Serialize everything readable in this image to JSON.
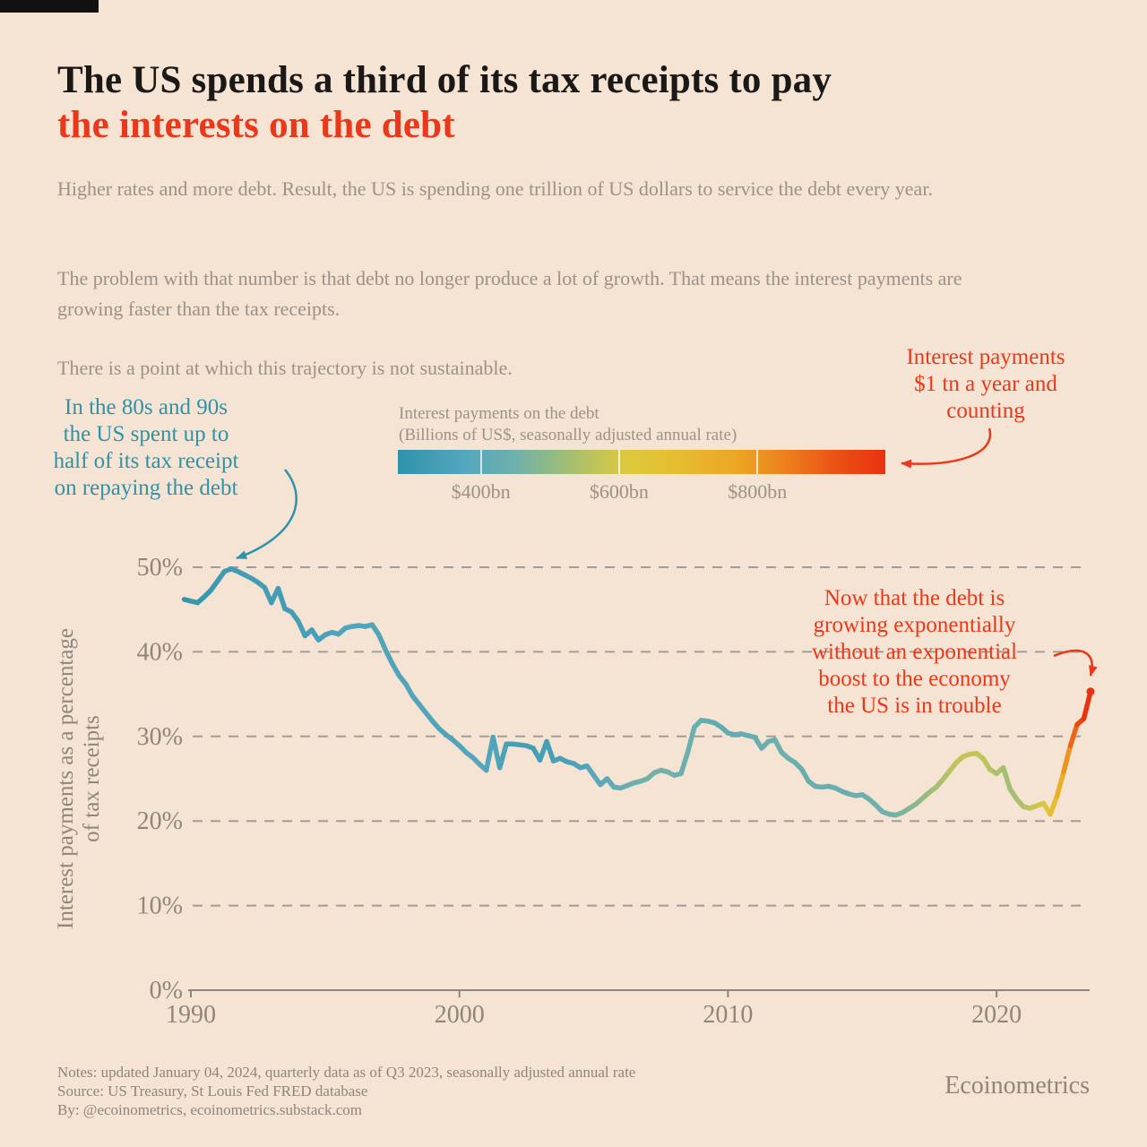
{
  "colors": {
    "background": "#F5E3D3",
    "black_bar": "#111111",
    "ink": "#1B1918",
    "red": "#E9391A",
    "teal": "#2F93A8",
    "body_gray": "#9B9289",
    "axis_gray": "#8E867D",
    "gridline_gray": "#8C8C8C"
  },
  "header": {
    "title_line1": "The US spends a third of its tax receipts to pay",
    "title_line2": "the interests on the debt",
    "paragraphs": [
      "Higher rates and more debt. Result, the US is spending one trillion of US dollars to service the debt every year.",
      "The problem with that number is that debt no longer produce a lot of growth. That means the interest payments are growing faster than the tax receipts.",
      "There is a point at which this trajectory is not sustainable."
    ]
  },
  "annotations": {
    "teal": {
      "lines": [
        "In the 80s and 90s",
        "the US spent up to",
        "half of its tax receipt",
        "on repaying the debt"
      ]
    },
    "red_top": {
      "lines": [
        "Interest payments",
        "$1 tn a year and",
        "counting"
      ]
    },
    "red_right": {
      "lines": [
        "Now that the debt is",
        "growing exponentially",
        "without an exponential",
        "boost to the economy",
        "the US is in trouble"
      ]
    }
  },
  "colorbar": {
    "label_line1": "Interest payments on the debt",
    "label_line2": "(Billions of US$, seasonally adjusted annual rate)",
    "ticks": [
      "$400bn",
      "$600bn",
      "$800bn"
    ],
    "tick_values": [
      400,
      600,
      800
    ],
    "domain": [
      280,
      985
    ],
    "stops": [
      [
        0,
        "#2F93AC"
      ],
      [
        0.14,
        "#54A7BC"
      ],
      [
        0.24,
        "#6FB0AC"
      ],
      [
        0.32,
        "#93BB82"
      ],
      [
        0.4,
        "#BCC45C"
      ],
      [
        0.47,
        "#DCC83D"
      ],
      [
        0.58,
        "#E7BC2E"
      ],
      [
        0.7,
        "#ECA522"
      ],
      [
        0.8,
        "#ED7E1D"
      ],
      [
        0.9,
        "#EB5114"
      ],
      [
        1,
        "#E93110"
      ]
    ]
  },
  "chart_data": {
    "type": "line",
    "title": "",
    "xlabel": "",
    "ylabel_line1": "Interest payments as a percentage",
    "ylabel_line2": "of tax receipts",
    "x_unit": "year (quarterly data)",
    "y_unit": "percent of tax receipts",
    "color_encoding": "interest payments in billions of US$ mapped on colorbar scale",
    "xlim": [
      1989.7,
      2023.6
    ],
    "ylim": [
      0,
      55
    ],
    "yticks": [
      0,
      10,
      20,
      30,
      40,
      50
    ],
    "ytick_labels": [
      "0%",
      "10%",
      "20%",
      "30%",
      "40%",
      "50%"
    ],
    "xticks": [
      1990,
      2000,
      2010,
      2020
    ],
    "xtick_labels": [
      "1990",
      "2000",
      "2010",
      "2020"
    ],
    "grid": "dashed horizontal",
    "points": [
      [
        1989.75,
        46.2,
        292
      ],
      [
        1990,
        46.0,
        296
      ],
      [
        1990.25,
        45.8,
        299
      ],
      [
        1990.5,
        46.5,
        303
      ],
      [
        1990.75,
        47.3,
        308
      ],
      [
        1991,
        48.4,
        315
      ],
      [
        1991.25,
        49.5,
        322
      ],
      [
        1991.5,
        49.8,
        327
      ],
      [
        1991.75,
        49.5,
        330
      ],
      [
        1992,
        49.1,
        332
      ],
      [
        1992.25,
        48.7,
        333
      ],
      [
        1992.5,
        48.2,
        334
      ],
      [
        1992.75,
        47.6,
        334
      ],
      [
        1993,
        45.8,
        333
      ],
      [
        1993.25,
        47.5,
        334
      ],
      [
        1993.5,
        45.1,
        334
      ],
      [
        1993.75,
        44.7,
        335
      ],
      [
        1994,
        43.6,
        337
      ],
      [
        1994.25,
        41.9,
        339
      ],
      [
        1994.5,
        42.6,
        343
      ],
      [
        1994.75,
        41.4,
        347
      ],
      [
        1995,
        42.0,
        352
      ],
      [
        1995.25,
        42.3,
        357
      ],
      [
        1995.5,
        42.1,
        360
      ],
      [
        1995.75,
        42.8,
        363
      ],
      [
        1996,
        43.0,
        364
      ],
      [
        1996.25,
        43.1,
        365
      ],
      [
        1996.5,
        43.0,
        366
      ],
      [
        1996.75,
        43.2,
        367
      ],
      [
        1997,
        42.0,
        368
      ],
      [
        1997.25,
        40.2,
        369
      ],
      [
        1997.5,
        38.6,
        370
      ],
      [
        1997.75,
        37.2,
        371
      ],
      [
        1998,
        36.2,
        371
      ],
      [
        1998.25,
        34.8,
        370
      ],
      [
        1998.5,
        33.8,
        369
      ],
      [
        1998.75,
        32.8,
        367
      ],
      [
        1999,
        31.8,
        365
      ],
      [
        1999.25,
        30.9,
        363
      ],
      [
        1999.5,
        30.2,
        362
      ],
      [
        1999.75,
        29.6,
        364
      ],
      [
        2000,
        28.9,
        368
      ],
      [
        2000.25,
        28.1,
        372
      ],
      [
        2000.5,
        27.5,
        375
      ],
      [
        2000.75,
        26.7,
        376
      ],
      [
        2001,
        26.0,
        374
      ],
      [
        2001.25,
        29.9,
        369
      ],
      [
        2001.5,
        26.3,
        361
      ],
      [
        2001.75,
        29.1,
        352
      ],
      [
        2002,
        29.1,
        345
      ],
      [
        2002.25,
        29.0,
        340
      ],
      [
        2002.5,
        28.9,
        338
      ],
      [
        2002.75,
        28.6,
        336
      ],
      [
        2003,
        27.2,
        336
      ],
      [
        2003.25,
        29.4,
        338
      ],
      [
        2003.5,
        27.1,
        341
      ],
      [
        2003.75,
        27.4,
        345
      ],
      [
        2004,
        27.0,
        350
      ],
      [
        2004.25,
        26.8,
        356
      ],
      [
        2004.5,
        26.3,
        362
      ],
      [
        2004.75,
        26.5,
        370
      ],
      [
        2005,
        25.4,
        380
      ],
      [
        2005.25,
        24.3,
        391
      ],
      [
        2005.5,
        25.0,
        401
      ],
      [
        2005.75,
        24.0,
        411
      ],
      [
        2006,
        23.9,
        420
      ],
      [
        2006.25,
        24.2,
        429
      ],
      [
        2006.5,
        24.5,
        437
      ],
      [
        2006.75,
        24.7,
        444
      ],
      [
        2007,
        25.0,
        450
      ],
      [
        2007.25,
        25.7,
        454
      ],
      [
        2007.5,
        26.0,
        456
      ],
      [
        2007.75,
        25.8,
        455
      ],
      [
        2008,
        25.4,
        452
      ],
      [
        2008.25,
        25.6,
        447
      ],
      [
        2008.5,
        28.1,
        441
      ],
      [
        2008.75,
        31.1,
        434
      ],
      [
        2009,
        31.9,
        427
      ],
      [
        2009.25,
        31.8,
        420
      ],
      [
        2009.5,
        31.6,
        415
      ],
      [
        2009.75,
        31.1,
        412
      ],
      [
        2010,
        30.4,
        413
      ],
      [
        2010.25,
        30.2,
        416
      ],
      [
        2010.5,
        30.3,
        420
      ],
      [
        2010.75,
        30.1,
        425
      ],
      [
        2011,
        29.9,
        430
      ],
      [
        2011.25,
        28.6,
        434
      ],
      [
        2011.5,
        29.4,
        437
      ],
      [
        2011.75,
        29.6,
        439
      ],
      [
        2012,
        28.1,
        440
      ],
      [
        2012.25,
        27.4,
        439
      ],
      [
        2012.5,
        26.9,
        437
      ],
      [
        2012.75,
        26.1,
        435
      ],
      [
        2013,
        24.7,
        433
      ],
      [
        2013.25,
        24.1,
        431
      ],
      [
        2013.5,
        24.0,
        430
      ],
      [
        2013.75,
        24.1,
        430
      ],
      [
        2014,
        23.9,
        431
      ],
      [
        2014.25,
        23.5,
        433
      ],
      [
        2014.5,
        23.2,
        436
      ],
      [
        2014.75,
        23.0,
        439
      ],
      [
        2015,
        23.1,
        441
      ],
      [
        2015.25,
        22.6,
        443
      ],
      [
        2015.5,
        21.9,
        445
      ],
      [
        2015.75,
        21.1,
        448
      ],
      [
        2016,
        20.8,
        453
      ],
      [
        2016.25,
        20.7,
        459
      ],
      [
        2016.5,
        21.0,
        467
      ],
      [
        2016.75,
        21.5,
        477
      ],
      [
        2017,
        22.0,
        489
      ],
      [
        2017.25,
        22.7,
        501
      ],
      [
        2017.5,
        23.4,
        513
      ],
      [
        2017.75,
        24.0,
        525
      ],
      [
        2018,
        24.9,
        539
      ],
      [
        2018.25,
        25.9,
        553
      ],
      [
        2018.5,
        26.9,
        565
      ],
      [
        2018.75,
        27.6,
        572
      ],
      [
        2019,
        27.9,
        576
      ],
      [
        2019.25,
        28.0,
        574
      ],
      [
        2019.5,
        27.4,
        567
      ],
      [
        2019.75,
        26.1,
        557
      ],
      [
        2020,
        25.6,
        544
      ],
      [
        2020.25,
        26.3,
        532
      ],
      [
        2020.5,
        23.8,
        526
      ],
      [
        2020.75,
        22.6,
        532
      ],
      [
        2021,
        21.7,
        545
      ],
      [
        2021.25,
        21.5,
        560
      ],
      [
        2021.5,
        21.8,
        578
      ],
      [
        2021.75,
        22.1,
        598
      ],
      [
        2022,
        20.8,
        640
      ],
      [
        2022.25,
        22.9,
        700
      ],
      [
        2022.5,
        25.8,
        768
      ],
      [
        2022.75,
        28.9,
        845
      ],
      [
        2023,
        31.4,
        920
      ],
      [
        2023.25,
        32.1,
        955
      ],
      [
        2023.5,
        35.3,
        1004
      ]
    ]
  },
  "footer": {
    "notes": [
      "Notes: updated January 04, 2024, quarterly data as of Q3 2023, seasonally adjusted annual rate",
      "Source: US Treasury, St Louis Fed FRED database",
      "By: @ecoinometrics, ecoinometrics.substack.com"
    ],
    "brand": "Ecoinometrics"
  }
}
